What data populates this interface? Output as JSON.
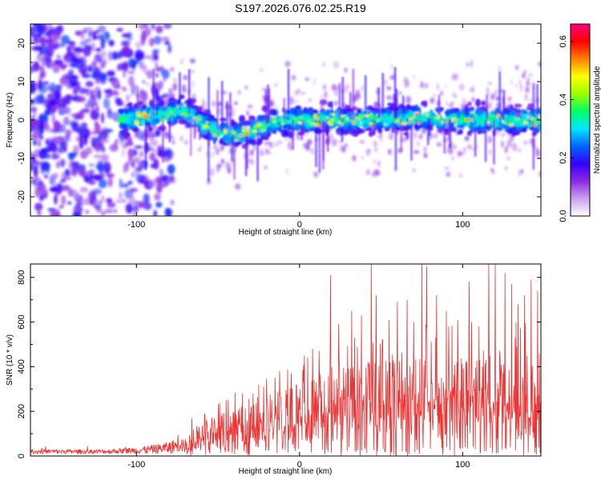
{
  "title": "S197.2026.076.02.25.R19",
  "chart_data": [
    {
      "type": "heatmap",
      "xlabel": "Height of straight line (km)",
      "ylabel": "Frequency (Hz)",
      "xlim": [
        -165,
        148
      ],
      "ylim": [
        -25,
        25
      ],
      "xticks": [
        -100,
        0,
        100
      ],
      "yticks": [
        -20,
        -10,
        0,
        10,
        20
      ],
      "colorbar": {
        "label": "Normalized spectral amplitude",
        "range": [
          0.0,
          0.66
        ],
        "ticks": [
          0.0,
          0.2,
          0.4,
          0.6
        ],
        "tick_labels": [
          "0.0",
          "0.2",
          "0.4",
          "0.6"
        ],
        "colors": [
          "#ffffff",
          "#c8a0f0",
          "#8a2be2",
          "#3300ff",
          "#0066ff",
          "#00e5ff",
          "#00ff66",
          "#a0ff00",
          "#ffff00",
          "#ff8000",
          "#ff0000",
          "#ff0080"
        ]
      },
      "signal_center_freq": [
        [
          -110,
          0
        ],
        [
          -80,
          1.5
        ],
        [
          -72,
          3
        ],
        [
          -60,
          -1
        ],
        [
          -50,
          -3
        ],
        [
          -40,
          -4
        ],
        [
          -30,
          -3
        ],
        [
          -20,
          -1
        ],
        [
          -10,
          0
        ],
        [
          0,
          0
        ],
        [
          20,
          0
        ],
        [
          40,
          0
        ],
        [
          60,
          0.5
        ],
        [
          80,
          0.5
        ],
        [
          100,
          0
        ],
        [
          120,
          0
        ],
        [
          148,
          0
        ]
      ]
    },
    {
      "type": "line",
      "xlabel": "Height of straight line (km)",
      "ylabel": "SNR (10 * v/v)",
      "xlim": [
        -165,
        148
      ],
      "ylim": [
        0,
        860
      ],
      "xticks": [
        -100,
        0,
        100
      ],
      "yticks": [
        0,
        200,
        400,
        600,
        800
      ],
      "color": "#ee3333",
      "envelope": [
        [
          -165,
          25
        ],
        [
          -120,
          25
        ],
        [
          -100,
          35
        ],
        [
          -90,
          45
        ],
        [
          -80,
          60
        ],
        [
          -70,
          100
        ],
        [
          -60,
          140
        ],
        [
          -50,
          180
        ],
        [
          -40,
          220
        ],
        [
          -30,
          250
        ],
        [
          -20,
          280
        ],
        [
          -10,
          300
        ],
        [
          0,
          330
        ],
        [
          10,
          360
        ],
        [
          20,
          400
        ],
        [
          40,
          430
        ],
        [
          60,
          450
        ],
        [
          80,
          470
        ],
        [
          100,
          480
        ],
        [
          120,
          470
        ],
        [
          148,
          460
        ]
      ],
      "peaks": [
        [
          -66,
          170
        ],
        [
          -58,
          190
        ],
        [
          -45,
          250
        ],
        [
          -35,
          280
        ],
        [
          -25,
          320
        ],
        [
          -22,
          310
        ],
        [
          -15,
          350
        ],
        [
          -5,
          370
        ],
        [
          -2,
          320
        ],
        [
          3,
          450
        ],
        [
          8,
          480
        ],
        [
          12,
          470
        ],
        [
          19,
          810
        ],
        [
          24,
          590
        ],
        [
          32,
          650
        ],
        [
          38,
          630
        ],
        [
          44,
          860
        ],
        [
          47,
          720
        ],
        [
          55,
          610
        ],
        [
          60,
          690
        ],
        [
          66,
          700
        ],
        [
          70,
          600
        ],
        [
          75,
          860
        ],
        [
          78,
          850
        ],
        [
          84,
          720
        ],
        [
          90,
          650
        ],
        [
          97,
          610
        ],
        [
          104,
          780
        ],
        [
          110,
          580
        ],
        [
          116,
          860
        ],
        [
          120,
          860
        ],
        [
          126,
          820
        ],
        [
          130,
          770
        ],
        [
          134,
          680
        ],
        [
          138,
          720
        ],
        [
          142,
          790
        ],
        [
          146,
          740
        ]
      ]
    }
  ]
}
